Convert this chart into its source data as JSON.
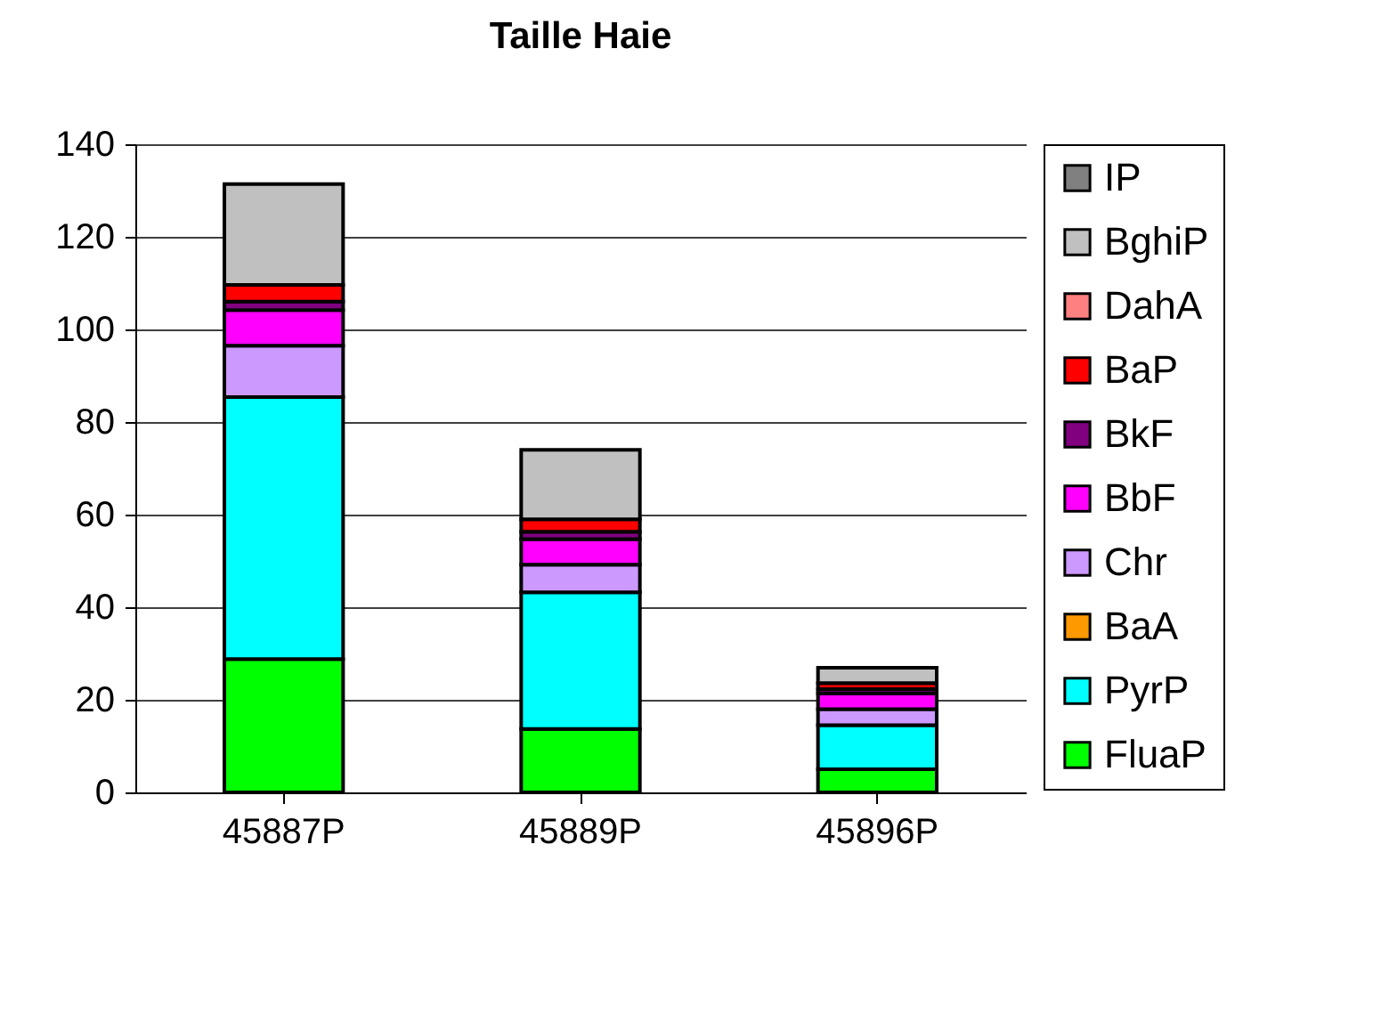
{
  "chart_data": {
    "type": "bar",
    "title": "Taille Haie",
    "stacked": true,
    "categories": [
      "45887P",
      "45889P",
      "45896P"
    ],
    "series": [
      {
        "name": "FluaP",
        "color": "#00ff00",
        "values": [
          28.8,
          13.7,
          5
        ]
      },
      {
        "name": "PyrP",
        "color": "#00ffff",
        "values": [
          56.6,
          29.5,
          9.5
        ]
      },
      {
        "name": "BaA",
        "color": "#ff9900",
        "values": [
          null,
          null,
          null
        ]
      },
      {
        "name": "Chr",
        "color": "#cc99ff",
        "values": [
          11.1,
          6,
          3.5
        ]
      },
      {
        "name": "BbF",
        "color": "#ff00ff",
        "values": [
          7.7,
          5.5,
          3.4
        ]
      },
      {
        "name": "BkF",
        "color": "#800080",
        "values": [
          1.8,
          1.6,
          0.9
        ]
      },
      {
        "name": "BaP",
        "color": "#ff0000",
        "values": [
          3.6,
          2.7,
          1.3
        ]
      },
      {
        "name": "DahA",
        "color": "#ff8080",
        "values": [
          null,
          null,
          null
        ]
      },
      {
        "name": "BghiP",
        "color": "#c0c0c0",
        "values": [
          21.8,
          15,
          3.3
        ]
      },
      {
        "name": "IP",
        "color": "#808080",
        "values": [
          null,
          null,
          null
        ]
      }
    ],
    "ylim": [
      0,
      140
    ],
    "yticks": [
      0,
      20,
      40,
      60,
      80,
      100,
      120,
      140
    ],
    "grid": "y",
    "legend": "right"
  }
}
